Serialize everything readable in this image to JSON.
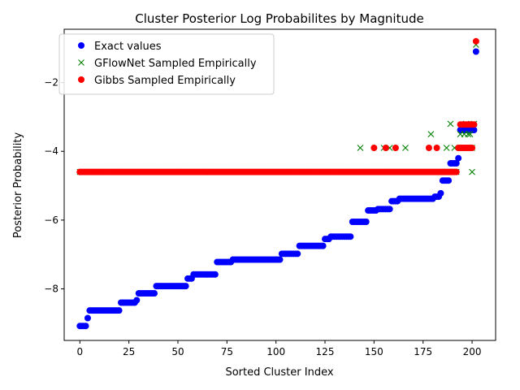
{
  "chart_data": {
    "type": "scatter",
    "title": "Cluster Posterior Log Probabilites by Magnitude",
    "xlabel": "Sorted Cluster Index",
    "ylabel": "Posterior Probability",
    "xlim": [
      -8,
      212
    ],
    "ylim": [
      -9.5,
      -0.45
    ],
    "xticks": [
      0,
      25,
      50,
      75,
      100,
      125,
      150,
      175,
      200
    ],
    "yticks": [
      -8,
      -6,
      -4,
      -2
    ],
    "grid": false,
    "legend_position": "top-left",
    "n_points": 203,
    "series": [
      {
        "name": "Exact values",
        "marker": "circle",
        "color": "#0000ff",
        "segments": [
          {
            "x_from": 0,
            "x_to": 3,
            "y": -9.08
          },
          {
            "x_from": 4,
            "x_to": 4,
            "y": -8.85
          },
          {
            "x_from": 5,
            "x_to": 20,
            "y": -8.63
          },
          {
            "x_from": 21,
            "x_to": 28,
            "y": -8.4
          },
          {
            "x_from": 29,
            "x_to": 29,
            "y": -8.33
          },
          {
            "x_from": 30,
            "x_to": 38,
            "y": -8.13
          },
          {
            "x_from": 39,
            "x_to": 54,
            "y": -7.92
          },
          {
            "x_from": 55,
            "x_to": 57,
            "y": -7.7
          },
          {
            "x_from": 58,
            "x_to": 69,
            "y": -7.58
          },
          {
            "x_from": 70,
            "x_to": 77,
            "y": -7.22
          },
          {
            "x_from": 78,
            "x_to": 102,
            "y": -7.15
          },
          {
            "x_from": 103,
            "x_to": 111,
            "y": -6.98
          },
          {
            "x_from": 112,
            "x_to": 124,
            "y": -6.75
          },
          {
            "x_from": 125,
            "x_to": 127,
            "y": -6.55
          },
          {
            "x_from": 128,
            "x_to": 138,
            "y": -6.48
          },
          {
            "x_from": 139,
            "x_to": 146,
            "y": -6.05
          },
          {
            "x_from": 147,
            "x_to": 151,
            "y": -5.72
          },
          {
            "x_from": 152,
            "x_to": 158,
            "y": -5.68
          },
          {
            "x_from": 159,
            "x_to": 162,
            "y": -5.45
          },
          {
            "x_from": 163,
            "x_to": 180,
            "y": -5.38
          },
          {
            "x_from": 181,
            "x_to": 183,
            "y": -5.32
          },
          {
            "x_from": 184,
            "x_to": 184,
            "y": -5.22
          },
          {
            "x_from": 185,
            "x_to": 188,
            "y": -4.85
          },
          {
            "x_from": 189,
            "x_to": 192,
            "y": -4.35
          },
          {
            "x_from": 193,
            "x_to": 193,
            "y": -4.2
          },
          {
            "x_from": 194,
            "x_to": 201,
            "y": -3.38
          },
          {
            "x_from": 202,
            "x_to": 202,
            "y": -1.1
          }
        ]
      },
      {
        "name": "GFlowNet Sampled Empirically",
        "marker": "x",
        "color": "#008000",
        "segments": [
          {
            "x_from": 0,
            "x_to": 192,
            "y": -4.6
          }
        ],
        "points": [
          [
            143,
            -3.9
          ],
          [
            155,
            -3.9
          ],
          [
            158,
            -3.9
          ],
          [
            166,
            -3.9
          ],
          [
            179,
            -3.5
          ],
          [
            187,
            -3.9
          ],
          [
            189,
            -3.2
          ],
          [
            191,
            -3.9
          ],
          [
            194,
            -3.5
          ],
          [
            195,
            -3.9
          ],
          [
            196,
            -3.5
          ],
          [
            197,
            -3.2
          ],
          [
            198,
            -3.5
          ],
          [
            199,
            -3.5
          ],
          [
            200,
            -3.9
          ],
          [
            201,
            -3.2
          ],
          [
            200,
            -4.6
          ],
          [
            202,
            -0.9
          ]
        ]
      },
      {
        "name": "Gibbs Sampled Empirically",
        "marker": "circle",
        "color": "#ff0000",
        "segments": [
          {
            "x_from": 0,
            "x_to": 192,
            "y": -4.6
          },
          {
            "x_from": 193,
            "x_to": 200,
            "y": -3.9
          },
          {
            "x_from": 194,
            "x_to": 201,
            "y": -3.22
          }
        ],
        "points": [
          [
            150,
            -3.9
          ],
          [
            156,
            -3.9
          ],
          [
            161,
            -3.9
          ],
          [
            178,
            -3.9
          ],
          [
            182,
            -3.9
          ],
          [
            202,
            -0.8
          ]
        ]
      }
    ]
  }
}
